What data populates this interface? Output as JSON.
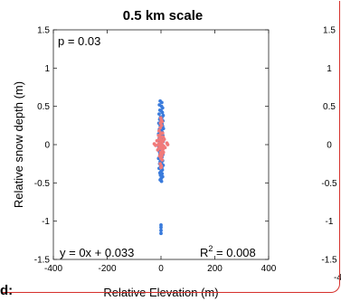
{
  "chart_data": {
    "type": "scatter",
    "title": "0.5 km scale",
    "xlabel": "Relative Elevation (m)",
    "ylabel": "Relative snow depth (m)",
    "xlim": [
      -400,
      400
    ],
    "ylim": [
      -1.5,
      1.5
    ],
    "xticks": [
      "-400",
      "-200",
      "0",
      "200",
      "400"
    ],
    "yticks": [
      "1.5",
      "1",
      "0.5",
      "0",
      "-0.5",
      "-1",
      "-1.5"
    ],
    "right_yticks": [
      "1.5",
      "1",
      "0.5",
      "0",
      "-0.5",
      "-1",
      "-1.5"
    ],
    "partial_xtick": "-4",
    "p_text": "p = 0.03",
    "fit_text": "y = 0x + 0.033",
    "r2_prefix": "R",
    "r2_sup": "2",
    "r2_value": " = 0.008",
    "fragment_text": "d:",
    "grid": false,
    "colors": {
      "blue": "#3a7bdc",
      "red": "#f07a7a",
      "frame": "#d6302b"
    },
    "series": [
      {
        "color": "blue",
        "points": [
          [
            -3,
            0.57
          ],
          [
            3,
            0.55
          ],
          [
            -6,
            0.52
          ],
          [
            2,
            0.5
          ],
          [
            6,
            0.48
          ],
          [
            -4,
            0.45
          ],
          [
            1,
            0.44
          ],
          [
            5,
            0.42
          ],
          [
            -7,
            0.4
          ],
          [
            8,
            0.38
          ],
          [
            -2,
            0.36
          ],
          [
            3,
            0.35
          ],
          [
            -5,
            0.33
          ],
          [
            7,
            0.31
          ],
          [
            0,
            0.3
          ],
          [
            -8,
            0.28
          ],
          [
            4,
            0.27
          ],
          [
            -3,
            0.25
          ],
          [
            6,
            0.24
          ],
          [
            -1,
            0.22
          ],
          [
            9,
            0.21
          ],
          [
            -6,
            0.2
          ],
          [
            2,
            0.19
          ],
          [
            -4,
            0.17
          ],
          [
            5,
            0.16
          ],
          [
            -9,
            0.14
          ],
          [
            1,
            0.13
          ],
          [
            7,
            0.12
          ],
          [
            -2,
            0.1
          ],
          [
            4,
            0.09
          ],
          [
            -7,
            0.08
          ],
          [
            3,
            0.06
          ],
          [
            -5,
            0.05
          ],
          [
            8,
            0.04
          ],
          [
            0,
            0.02
          ],
          [
            -3,
            0.0
          ],
          [
            6,
            -0.01
          ],
          [
            -8,
            -0.03
          ],
          [
            2,
            -0.04
          ],
          [
            -1,
            -0.06
          ],
          [
            5,
            -0.07
          ],
          [
            -6,
            -0.09
          ],
          [
            3,
            -0.1
          ],
          [
            -4,
            -0.12
          ],
          [
            7,
            -0.13
          ],
          [
            -2,
            -0.15
          ],
          [
            4,
            -0.16
          ],
          [
            -9,
            -0.18
          ],
          [
            1,
            -0.19
          ],
          [
            6,
            -0.21
          ],
          [
            -3,
            -0.22
          ],
          [
            2,
            -0.24
          ],
          [
            -5,
            -0.25
          ],
          [
            8,
            -0.27
          ],
          [
            -1,
            -0.28
          ],
          [
            3,
            -0.3
          ],
          [
            -7,
            -0.31
          ],
          [
            5,
            -0.33
          ],
          [
            0,
            -0.35
          ],
          [
            -4,
            -0.37
          ],
          [
            4,
            -0.38
          ],
          [
            -2,
            -0.4
          ],
          [
            6,
            -0.42
          ],
          [
            1,
            -0.44
          ],
          [
            -3,
            -0.46
          ],
          [
            2,
            -0.48
          ],
          [
            0,
            -1.05
          ],
          [
            0,
            -1.08
          ],
          [
            0,
            -1.12
          ],
          [
            0,
            -1.16
          ]
        ]
      },
      {
        "color": "red",
        "points": [
          [
            -25,
            0.01
          ],
          [
            -20,
            -0.01
          ],
          [
            25,
            0.0
          ],
          [
            22,
            0.02
          ],
          [
            -15,
            0.05
          ],
          [
            15,
            -0.04
          ],
          [
            -12,
            -0.07
          ],
          [
            12,
            0.07
          ],
          [
            -9,
            0.12
          ],
          [
            9,
            -0.1
          ],
          [
            -7,
            0.18
          ],
          [
            6,
            0.15
          ],
          [
            -5,
            -0.15
          ],
          [
            4,
            -0.2
          ],
          [
            -3,
            0.22
          ],
          [
            2,
            0.1
          ],
          [
            -2,
            -0.12
          ],
          [
            0,
            0.06
          ],
          [
            1,
            -0.05
          ],
          [
            -1,
            0.03
          ],
          [
            3,
            0.0
          ],
          [
            -4,
            0.08
          ],
          [
            5,
            -0.08
          ],
          [
            -6,
            -0.02
          ],
          [
            7,
            0.04
          ],
          [
            -8,
            -0.05
          ],
          [
            8,
            0.1
          ],
          [
            -10,
            0.0
          ],
          [
            10,
            -0.02
          ],
          [
            0,
            -0.18
          ],
          [
            2,
            0.25
          ],
          [
            -3,
            -0.25
          ],
          [
            4,
            0.3
          ],
          [
            -2,
            0.28
          ],
          [
            1,
            -0.28
          ],
          [
            -5,
            0.12
          ],
          [
            6,
            -0.12
          ],
          [
            -1,
            -0.1
          ],
          [
            0,
            0.15
          ],
          [
            3,
            -0.15
          ],
          [
            -6,
            0.02
          ],
          [
            5,
            0.05
          ],
          [
            -4,
            -0.04
          ],
          [
            2,
            -0.02
          ],
          [
            -2,
            0.0
          ],
          [
            7,
            -0.06
          ],
          [
            -7,
            0.07
          ],
          [
            0,
            -0.3
          ],
          [
            1,
            0.32
          ],
          [
            -1,
            0.35
          ]
        ]
      }
    ]
  }
}
